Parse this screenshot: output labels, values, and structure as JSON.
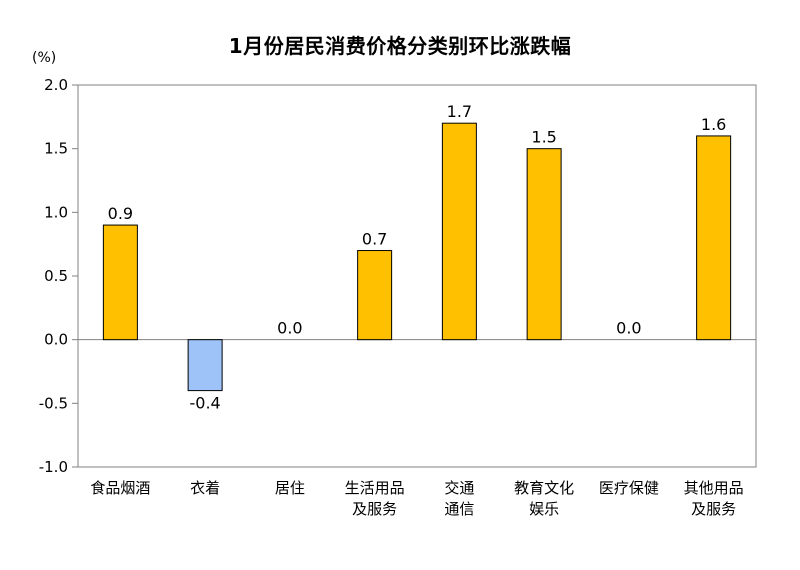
{
  "chart_data": {
    "type": "bar",
    "title": "1月份居民消费价格分类别环比涨跌幅",
    "unit_label": "(%)",
    "categories": [
      [
        "食品烟酒"
      ],
      [
        "衣着"
      ],
      [
        "居住"
      ],
      [
        "生活用品",
        "及服务"
      ],
      [
        "交通",
        "通信"
      ],
      [
        "教育文化",
        "娱乐"
      ],
      [
        "医疗保健"
      ],
      [
        "其他用品",
        "及服务"
      ]
    ],
    "values": [
      0.9,
      -0.4,
      0.0,
      0.7,
      1.7,
      1.5,
      0.0,
      1.6
    ],
    "value_labels": [
      "0.9",
      "-0.4",
      "0.0",
      "0.7",
      "1.7",
      "1.5",
      "0.0",
      "1.6"
    ],
    "yticks": [
      "2.0",
      "1.5",
      "1.0",
      "0.5",
      "0.0",
      "-0.5",
      "-1.0"
    ],
    "ylim": [
      -1.0,
      2.0
    ],
    "grid": false,
    "colors": {
      "positive": "#FFC000",
      "negative": "#9DC3F8",
      "bar_stroke": "#000000",
      "axis": "#808080"
    }
  }
}
